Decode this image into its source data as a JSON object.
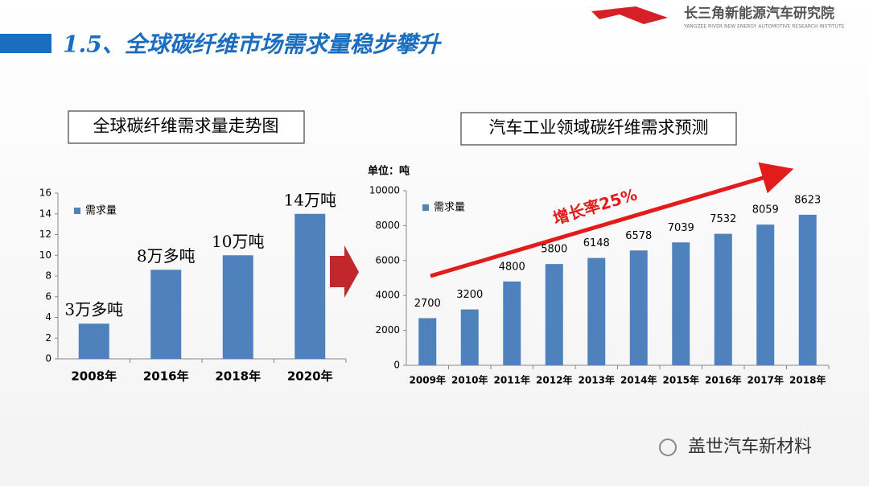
{
  "title": "1.5、全球碳纤维市场需求量稳步攀升",
  "logo": {
    "name": "长三角新能源汽车研究院",
    "subtitle": "YANGZEE RIVER NEW ENERGY AUTOMOTIVE RESEARCH INSTITUTE"
  },
  "watermark": "盖世汽车新材料",
  "chart_data": [
    {
      "type": "bar",
      "title": "全球碳纤维需求量走势图",
      "categories": [
        "2008年",
        "2016年",
        "2018年",
        "2020年"
      ],
      "series": [
        {
          "name": "需求量",
          "color": "#4f81bd",
          "values": [
            3.4,
            8.6,
            10,
            14
          ],
          "value_labels": [
            "3万多吨",
            "8万多吨",
            "10万吨",
            "14万吨"
          ]
        }
      ],
      "ylim": [
        0,
        16
      ],
      "yticks": [
        0,
        2,
        4,
        6,
        8,
        10,
        12,
        14,
        16
      ],
      "grid": false,
      "legend": "upper left"
    },
    {
      "type": "bar",
      "title": "汽车工业领域碳纤维需求预测",
      "subtitle": "单位：吨",
      "annotation": "增长率25%",
      "categories": [
        "2009年",
        "2010年",
        "2011年",
        "2012年",
        "2013年",
        "2014年",
        "2015年",
        "2016年",
        "2017年",
        "2018年"
      ],
      "series": [
        {
          "name": "需求量",
          "color": "#4f81bd",
          "values": [
            2700,
            3200,
            4800,
            5800,
            6148,
            6578,
            7039,
            7532,
            8059,
            8623
          ]
        }
      ],
      "ylim": [
        0,
        10000
      ],
      "yticks": [
        0,
        2000,
        4000,
        6000,
        8000,
        10000
      ],
      "grid": false,
      "legend": "upper left"
    }
  ]
}
